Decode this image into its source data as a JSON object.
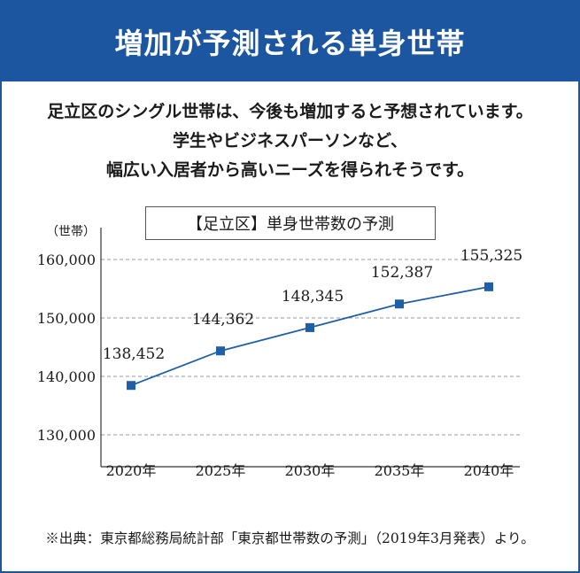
{
  "header": {
    "title": "増加が予測される単身世帯"
  },
  "intro": {
    "lines": [
      "足立区のシングル世帯は、今後も増加すると予想されています。",
      "学生やビジネスパーソンなど、",
      "幅広い入居者から高いニーズを得られそうです。"
    ]
  },
  "footnote": "※出典：東京都総務局統計部「東京都世帯数の予測」（2019年3月発表）より。",
  "colors": {
    "brand": "#1c55a0",
    "series": "#1f5fa8",
    "grid": "#999999"
  },
  "chart_data": {
    "type": "line",
    "title": "【足立区】単身世帯数の予測",
    "ylabel": "（世帯）",
    "categories": [
      "2020年",
      "2025年",
      "2030年",
      "2035年",
      "2040年"
    ],
    "values": [
      138452,
      144362,
      148345,
      152387,
      155325
    ],
    "data_labels": [
      "138,452",
      "144,362",
      "148,345",
      "152,387",
      "155,325"
    ],
    "yticks": [
      130000,
      140000,
      150000,
      160000
    ],
    "ytick_labels": [
      "130,000",
      "140,000",
      "150,000",
      "160,000"
    ],
    "ylim": [
      125000,
      165000
    ],
    "grid": true,
    "marker": "square"
  }
}
